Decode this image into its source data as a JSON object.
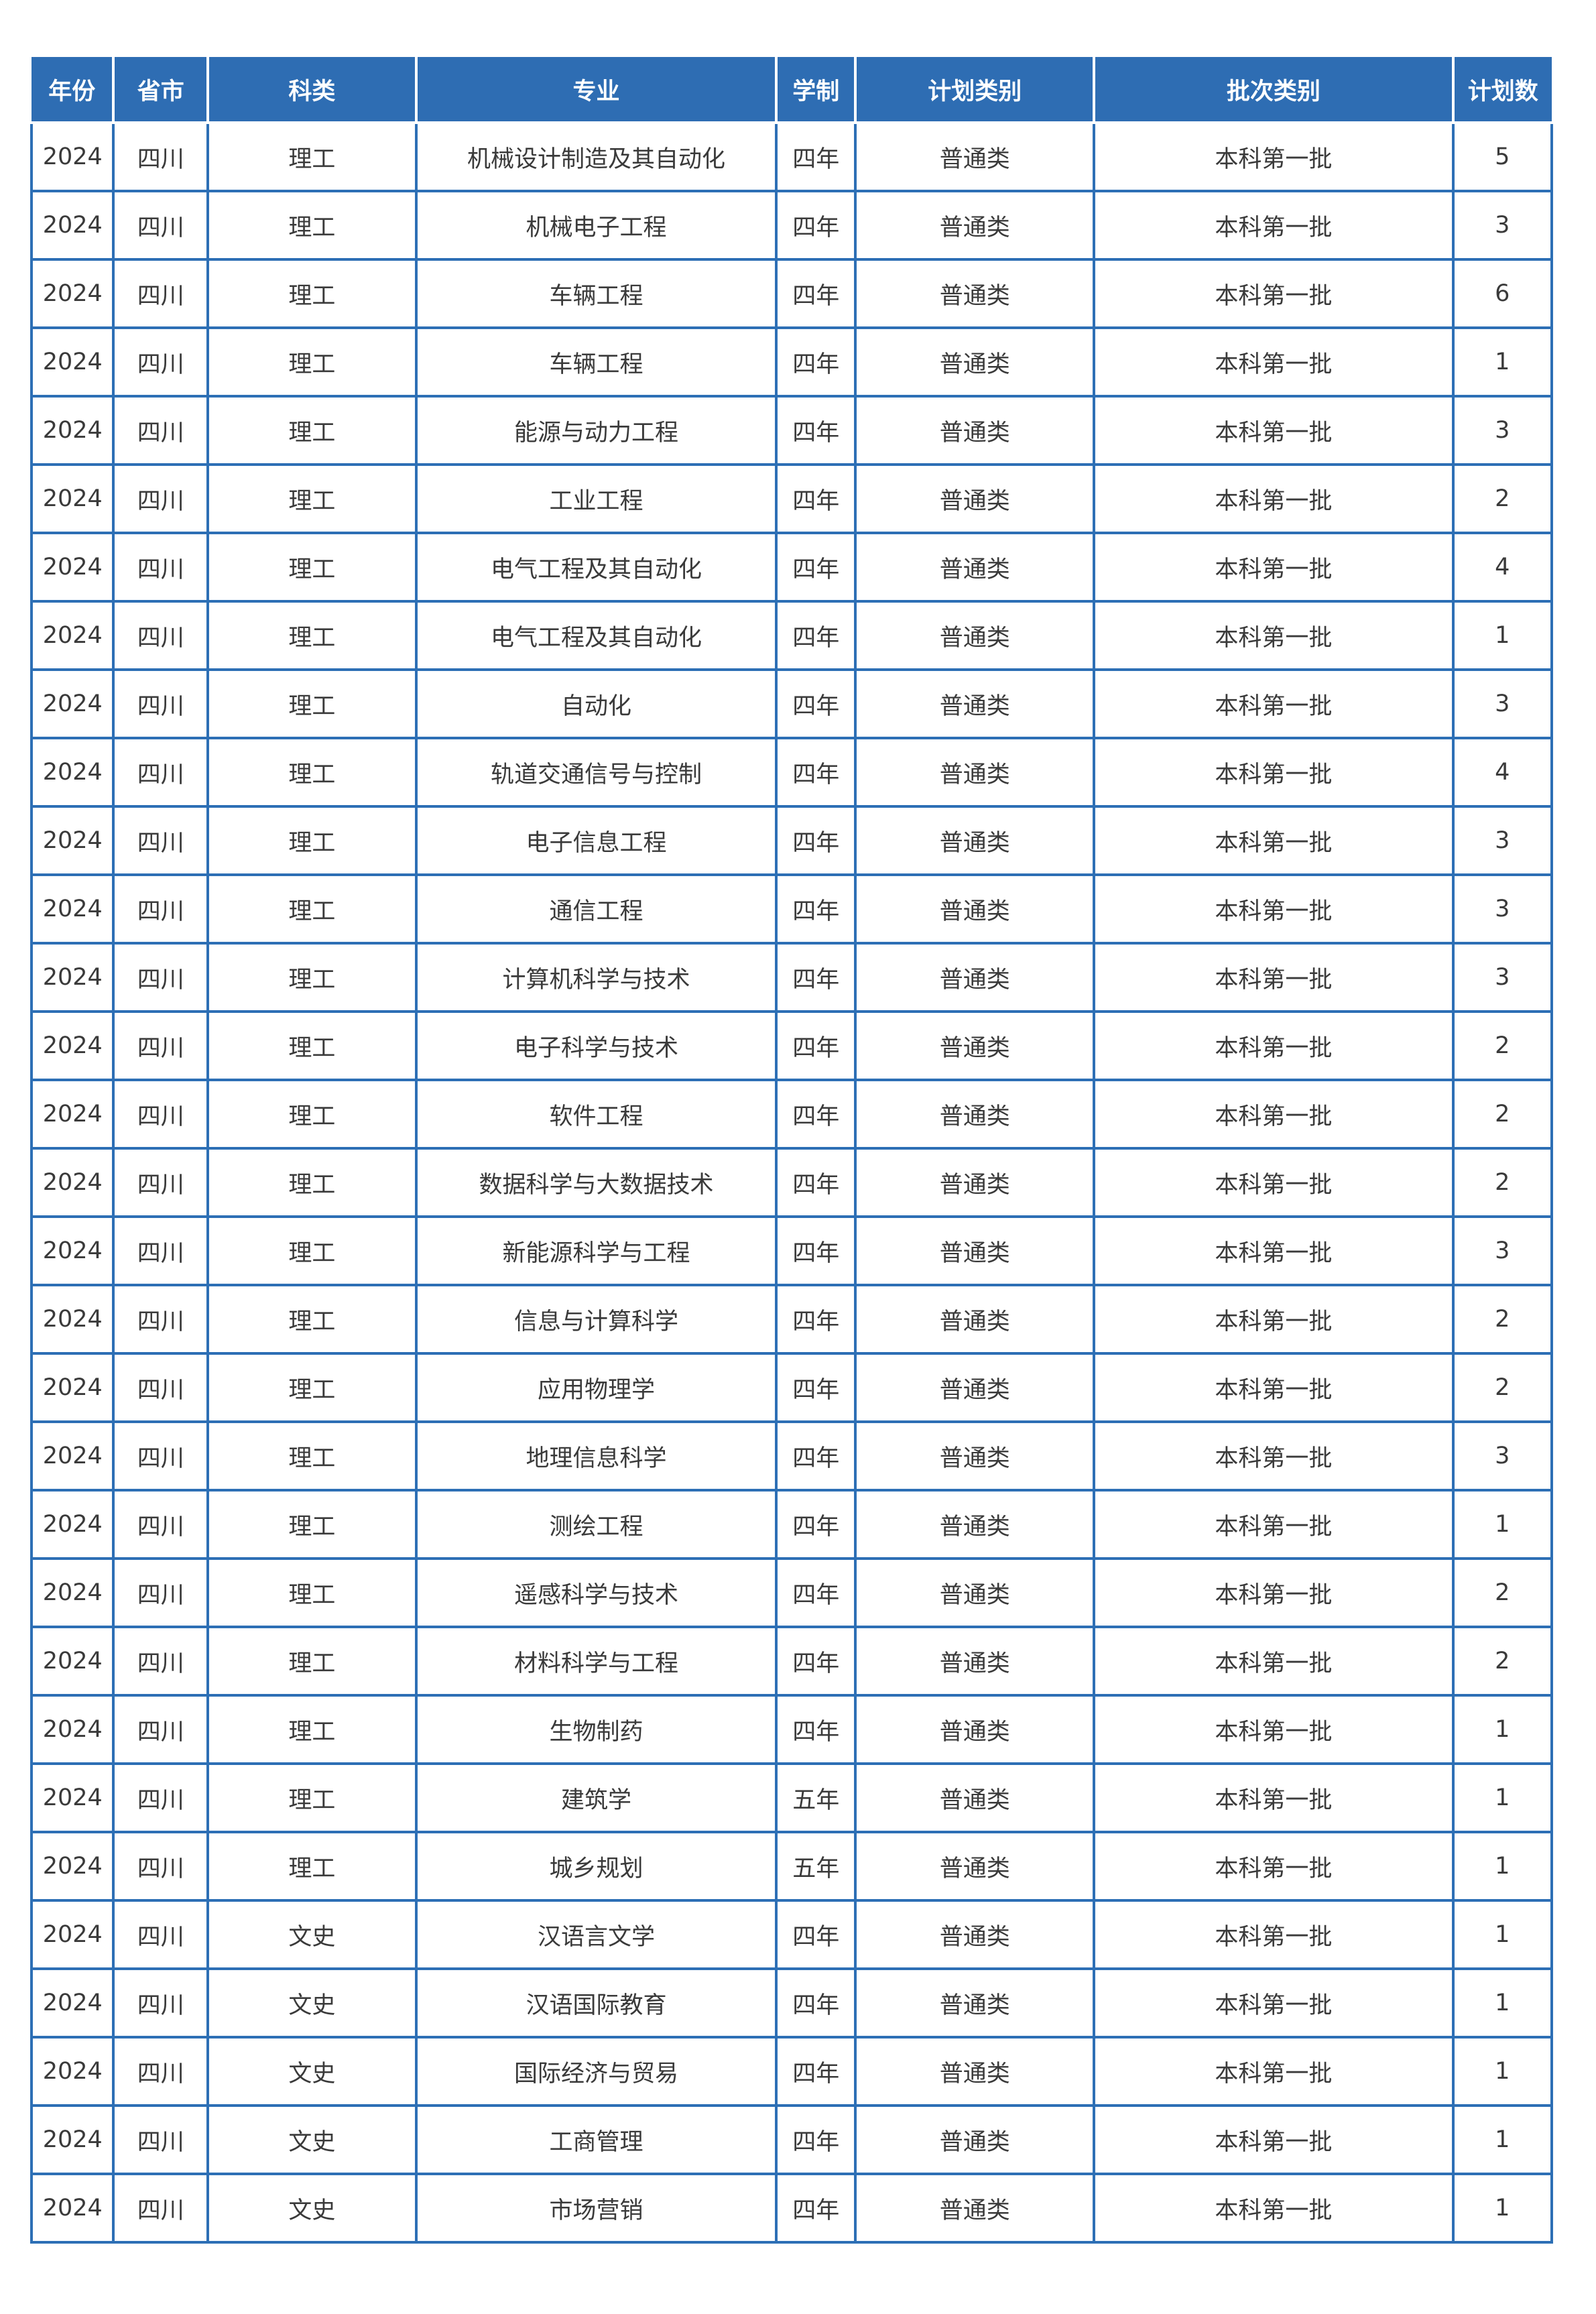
{
  "table": {
    "header_bg": "#2e6db3",
    "grid_border": "#2d6fb5",
    "columns": [
      {
        "key": "year",
        "label": "年份"
      },
      {
        "key": "province",
        "label": "省市"
      },
      {
        "key": "category",
        "label": "科类"
      },
      {
        "key": "major",
        "label": "专业"
      },
      {
        "key": "duration",
        "label": "学制"
      },
      {
        "key": "plan-type",
        "label": "计划类别"
      },
      {
        "key": "batch-type",
        "label": "批次类别"
      },
      {
        "key": "plan-count",
        "label": "计划数"
      }
    ],
    "rows": [
      [
        "2024",
        "四川",
        "理工",
        "机械设计制造及其自动化",
        "四年",
        "普通类",
        "本科第一批",
        "5"
      ],
      [
        "2024",
        "四川",
        "理工",
        "机械电子工程",
        "四年",
        "普通类",
        "本科第一批",
        "3"
      ],
      [
        "2024",
        "四川",
        "理工",
        "车辆工程",
        "四年",
        "普通类",
        "本科第一批",
        "6"
      ],
      [
        "2024",
        "四川",
        "理工",
        "车辆工程",
        "四年",
        "普通类",
        "本科第一批",
        "1"
      ],
      [
        "2024",
        "四川",
        "理工",
        "能源与动力工程",
        "四年",
        "普通类",
        "本科第一批",
        "3"
      ],
      [
        "2024",
        "四川",
        "理工",
        "工业工程",
        "四年",
        "普通类",
        "本科第一批",
        "2"
      ],
      [
        "2024",
        "四川",
        "理工",
        "电气工程及其自动化",
        "四年",
        "普通类",
        "本科第一批",
        "4"
      ],
      [
        "2024",
        "四川",
        "理工",
        "电气工程及其自动化",
        "四年",
        "普通类",
        "本科第一批",
        "1"
      ],
      [
        "2024",
        "四川",
        "理工",
        "自动化",
        "四年",
        "普通类",
        "本科第一批",
        "3"
      ],
      [
        "2024",
        "四川",
        "理工",
        "轨道交通信号与控制",
        "四年",
        "普通类",
        "本科第一批",
        "4"
      ],
      [
        "2024",
        "四川",
        "理工",
        "电子信息工程",
        "四年",
        "普通类",
        "本科第一批",
        "3"
      ],
      [
        "2024",
        "四川",
        "理工",
        "通信工程",
        "四年",
        "普通类",
        "本科第一批",
        "3"
      ],
      [
        "2024",
        "四川",
        "理工",
        "计算机科学与技术",
        "四年",
        "普通类",
        "本科第一批",
        "3"
      ],
      [
        "2024",
        "四川",
        "理工",
        "电子科学与技术",
        "四年",
        "普通类",
        "本科第一批",
        "2"
      ],
      [
        "2024",
        "四川",
        "理工",
        "软件工程",
        "四年",
        "普通类",
        "本科第一批",
        "2"
      ],
      [
        "2024",
        "四川",
        "理工",
        "数据科学与大数据技术",
        "四年",
        "普通类",
        "本科第一批",
        "2"
      ],
      [
        "2024",
        "四川",
        "理工",
        "新能源科学与工程",
        "四年",
        "普通类",
        "本科第一批",
        "3"
      ],
      [
        "2024",
        "四川",
        "理工",
        "信息与计算科学",
        "四年",
        "普通类",
        "本科第一批",
        "2"
      ],
      [
        "2024",
        "四川",
        "理工",
        "应用物理学",
        "四年",
        "普通类",
        "本科第一批",
        "2"
      ],
      [
        "2024",
        "四川",
        "理工",
        "地理信息科学",
        "四年",
        "普通类",
        "本科第一批",
        "3"
      ],
      [
        "2024",
        "四川",
        "理工",
        "测绘工程",
        "四年",
        "普通类",
        "本科第一批",
        "1"
      ],
      [
        "2024",
        "四川",
        "理工",
        "遥感科学与技术",
        "四年",
        "普通类",
        "本科第一批",
        "2"
      ],
      [
        "2024",
        "四川",
        "理工",
        "材料科学与工程",
        "四年",
        "普通类",
        "本科第一批",
        "2"
      ],
      [
        "2024",
        "四川",
        "理工",
        "生物制药",
        "四年",
        "普通类",
        "本科第一批",
        "1"
      ],
      [
        "2024",
        "四川",
        "理工",
        "建筑学",
        "五年",
        "普通类",
        "本科第一批",
        "1"
      ],
      [
        "2024",
        "四川",
        "理工",
        "城乡规划",
        "五年",
        "普通类",
        "本科第一批",
        "1"
      ],
      [
        "2024",
        "四川",
        "文史",
        "汉语言文学",
        "四年",
        "普通类",
        "本科第一批",
        "1"
      ],
      [
        "2024",
        "四川",
        "文史",
        "汉语国际教育",
        "四年",
        "普通类",
        "本科第一批",
        "1"
      ],
      [
        "2024",
        "四川",
        "文史",
        "国际经济与贸易",
        "四年",
        "普通类",
        "本科第一批",
        "1"
      ],
      [
        "2024",
        "四川",
        "文史",
        "工商管理",
        "四年",
        "普通类",
        "本科第一批",
        "1"
      ],
      [
        "2024",
        "四川",
        "文史",
        "市场营销",
        "四年",
        "普通类",
        "本科第一批",
        "1"
      ]
    ]
  }
}
